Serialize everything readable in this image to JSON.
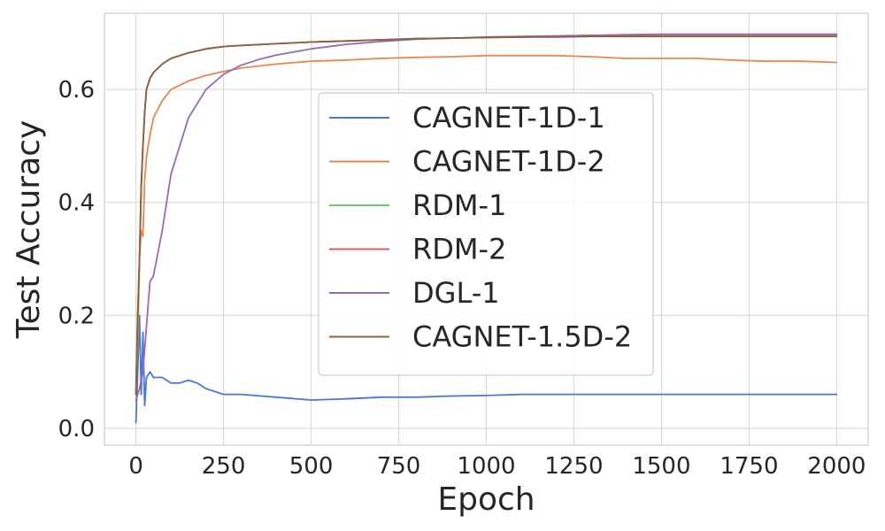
{
  "chart_data": {
    "type": "line",
    "title": "",
    "xlabel": "Epoch",
    "ylabel": "Test Accuracy",
    "xlim": [
      -90,
      2090
    ],
    "ylim": [
      -0.03,
      0.735
    ],
    "xticks": [
      0,
      250,
      500,
      750,
      1000,
      1250,
      1500,
      1750,
      2000
    ],
    "xtick_labels": [
      "0",
      "250",
      "500",
      "750",
      "1000",
      "1250",
      "1500",
      "1750",
      "2000"
    ],
    "yticks": [
      0.0,
      0.2,
      0.4,
      0.6
    ],
    "ytick_labels": [
      "0.0",
      "0.2",
      "0.4",
      "0.6"
    ],
    "grid": true,
    "legend_position": "center",
    "series": [
      {
        "name": "CAGNET-1D-1",
        "color": "#4878cf",
        "x": [
          0,
          5,
          10,
          15,
          20,
          25,
          30,
          40,
          50,
          75,
          100,
          125,
          150,
          175,
          200,
          250,
          300,
          400,
          500,
          600,
          700,
          800,
          900,
          1000,
          1100,
          1200,
          1300,
          1400,
          1500,
          1600,
          1700,
          1800,
          1900,
          2000
        ],
        "y": [
          0.01,
          0.1,
          0.2,
          0.06,
          0.17,
          0.04,
          0.09,
          0.1,
          0.09,
          0.09,
          0.08,
          0.08,
          0.085,
          0.08,
          0.07,
          0.06,
          0.06,
          0.055,
          0.05,
          0.052,
          0.055,
          0.055,
          0.057,
          0.058,
          0.06,
          0.06,
          0.06,
          0.06,
          0.06,
          0.06,
          0.06,
          0.06,
          0.06,
          0.06
        ]
      },
      {
        "name": "CAGNET-1D-2",
        "color": "#ee854a",
        "x": [
          0,
          5,
          10,
          15,
          20,
          25,
          30,
          40,
          50,
          75,
          100,
          150,
          200,
          250,
          300,
          400,
          500,
          600,
          700,
          800,
          900,
          1000,
          1100,
          1200,
          1300,
          1400,
          1500,
          1600,
          1700,
          1800,
          1900,
          2000
        ],
        "y": [
          0.08,
          0.15,
          0.3,
          0.35,
          0.34,
          0.44,
          0.48,
          0.52,
          0.55,
          0.58,
          0.6,
          0.615,
          0.625,
          0.632,
          0.638,
          0.645,
          0.65,
          0.652,
          0.655,
          0.657,
          0.658,
          0.66,
          0.66,
          0.66,
          0.658,
          0.655,
          0.655,
          0.655,
          0.652,
          0.65,
          0.65,
          0.648
        ]
      },
      {
        "name": "RDM-1",
        "color": "#6acc64",
        "x": [
          0,
          5,
          10,
          15,
          20,
          25,
          30,
          40,
          50,
          75,
          100,
          150,
          200,
          250,
          300,
          400,
          500,
          600,
          700,
          800,
          900,
          1000,
          1100,
          1200,
          1300,
          1400,
          1500,
          1600,
          1700,
          1800,
          1900,
          2000
        ],
        "y": [
          0.06,
          0.2,
          0.3,
          0.43,
          0.5,
          0.56,
          0.6,
          0.62,
          0.63,
          0.645,
          0.655,
          0.665,
          0.672,
          0.676,
          0.678,
          0.681,
          0.684,
          0.686,
          0.688,
          0.69,
          0.691,
          0.692,
          0.693,
          0.694,
          0.695,
          0.696,
          0.697,
          0.697,
          0.697,
          0.697,
          0.697,
          0.697
        ]
      },
      {
        "name": "RDM-2",
        "color": "#d65f5f",
        "x": [
          0,
          5,
          10,
          15,
          20,
          25,
          30,
          40,
          50,
          75,
          100,
          150,
          200,
          250,
          300,
          400,
          500,
          600,
          700,
          800,
          900,
          1000,
          1100,
          1200,
          1300,
          1400,
          1500,
          1600,
          1700,
          1800,
          1900,
          2000
        ],
        "y": [
          0.06,
          0.2,
          0.3,
          0.43,
          0.5,
          0.56,
          0.6,
          0.62,
          0.63,
          0.645,
          0.655,
          0.665,
          0.672,
          0.676,
          0.678,
          0.681,
          0.684,
          0.686,
          0.688,
          0.69,
          0.691,
          0.692,
          0.693,
          0.694,
          0.695,
          0.696,
          0.697,
          0.697,
          0.697,
          0.697,
          0.697,
          0.697
        ]
      },
      {
        "name": "DGL-1",
        "color": "#956cb4",
        "x": [
          0,
          10,
          20,
          30,
          40,
          50,
          75,
          100,
          150,
          200,
          250,
          300,
          350,
          400,
          500,
          600,
          700,
          800,
          900,
          1000,
          1100,
          1200,
          1300,
          1400,
          1500,
          1600,
          1700,
          1800,
          1900,
          2000
        ],
        "y": [
          0.05,
          0.07,
          0.1,
          0.18,
          0.26,
          0.27,
          0.35,
          0.45,
          0.55,
          0.6,
          0.627,
          0.643,
          0.653,
          0.661,
          0.672,
          0.68,
          0.685,
          0.689,
          0.691,
          0.693,
          0.694,
          0.695,
          0.696,
          0.697,
          0.698,
          0.698,
          0.698,
          0.698,
          0.698,
          0.698
        ]
      },
      {
        "name": "CAGNET-1.5D-2",
        "color": "#8c613c",
        "x": [
          0,
          5,
          10,
          15,
          20,
          25,
          30,
          40,
          50,
          75,
          100,
          150,
          200,
          250,
          300,
          400,
          500,
          600,
          700,
          800,
          900,
          1000,
          1100,
          1200,
          1300,
          1400,
          1500,
          1600,
          1700,
          1800,
          1900,
          2000
        ],
        "y": [
          0.06,
          0.2,
          0.3,
          0.43,
          0.5,
          0.56,
          0.6,
          0.62,
          0.63,
          0.645,
          0.655,
          0.665,
          0.672,
          0.676,
          0.678,
          0.681,
          0.684,
          0.686,
          0.688,
          0.69,
          0.691,
          0.692,
          0.693,
          0.693,
          0.694,
          0.694,
          0.694,
          0.694,
          0.694,
          0.694,
          0.694,
          0.694
        ]
      }
    ]
  }
}
